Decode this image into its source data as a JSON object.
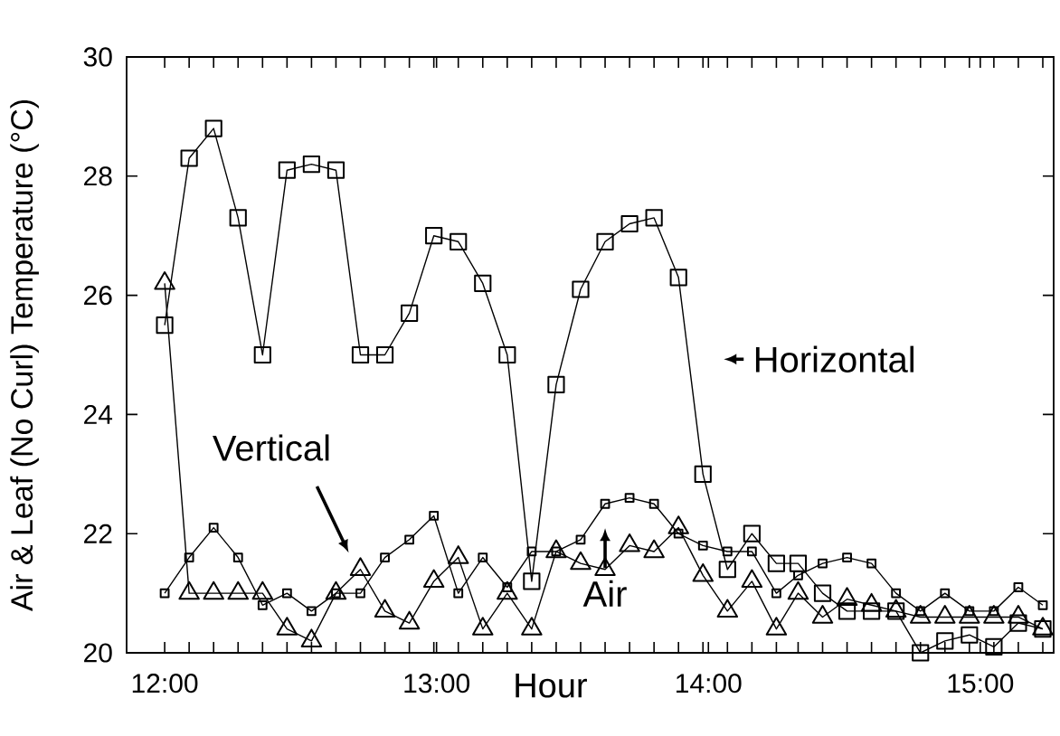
{
  "chart_data": {
    "type": "line",
    "xlabel": "Hour",
    "ylabel": "Air & Leaf (No Curl) Temperature (°C)",
    "x": [
      12.0,
      12.09,
      12.18,
      12.27,
      12.36,
      12.45,
      12.54,
      12.63,
      12.72,
      12.81,
      12.9,
      12.99,
      13.08,
      13.17,
      13.26,
      13.35,
      13.44,
      13.53,
      13.62,
      13.71,
      13.8,
      13.89,
      13.98,
      14.07,
      14.16,
      14.25,
      14.33,
      14.42,
      14.51,
      14.6,
      14.69,
      14.78,
      14.87,
      14.96,
      15.05,
      15.14,
      15.23
    ],
    "series": [
      {
        "color": "#000000",
        "marker": "square",
        "values": [
          25.5,
          28.3,
          28.8,
          27.3,
          25.0,
          28.1,
          28.2,
          28.1,
          25.0,
          25.0,
          25.7,
          27.0,
          26.9,
          26.2,
          25.0,
          21.2,
          24.5,
          26.1,
          26.9,
          27.2,
          27.3,
          26.3,
          23.0,
          21.4,
          22.0,
          21.5,
          21.5,
          21.0,
          20.7,
          20.7,
          20.7,
          20.0,
          20.2,
          20.3,
          20.1,
          20.5,
          20.4
        ]
      },
      {
        "color": "#000000",
        "marker": "triangle",
        "values": [
          26.2,
          21.0,
          21.0,
          21.0,
          21.0,
          20.4,
          20.2,
          21.0,
          21.4,
          20.7,
          20.5,
          21.2,
          21.6,
          20.4,
          21.0,
          20.4,
          21.7,
          21.5,
          21.4,
          21.8,
          21.7,
          22.1,
          21.3,
          20.7,
          21.2,
          20.4,
          21.0,
          20.6,
          20.9,
          20.8,
          20.7,
          20.6,
          20.6,
          20.6,
          20.6,
          20.6,
          20.4
        ]
      },
      {
        "color": "#000000",
        "marker": "square",
        "values": [
          21.0,
          21.6,
          22.1,
          21.6,
          20.8,
          21.0,
          20.7,
          21.0,
          21.0,
          21.6,
          21.9,
          22.3,
          21.0,
          21.6,
          21.1,
          21.7,
          21.7,
          21.9,
          22.5,
          22.6,
          22.5,
          22.0,
          21.8,
          21.7,
          21.7,
          21.0,
          21.3,
          21.5,
          21.6,
          21.5,
          21.0,
          20.7,
          21.0,
          20.7,
          20.7,
          21.1,
          20.8
        ]
      }
    ],
    "annotations": [
      "Horizontal",
      "Vertical",
      "Air"
    ],
    "xlim": [
      11.86,
      15.27
    ],
    "xticks": [
      {
        "value": 12,
        "label": "12:00"
      },
      {
        "value": 13,
        "label": "13:00"
      },
      {
        "value": 14,
        "label": "14:00"
      },
      {
        "value": 15,
        "label": "15:00"
      },
      {
        "value": 12.09,
        "label": null
      },
      {
        "value": 12.18,
        "label": null
      },
      {
        "value": 12.27,
        "label": null
      },
      {
        "value": 12.36,
        "label": null
      },
      {
        "value": 12.45,
        "label": null
      },
      {
        "value": 12.54,
        "label": null
      },
      {
        "value": 12.63,
        "label": null
      },
      {
        "value": 12.72,
        "label": null
      },
      {
        "value": 12.81,
        "label": null
      },
      {
        "value": 12.9,
        "label": null
      },
      {
        "value": 12.99,
        "label": null
      },
      {
        "value": 13.08,
        "label": null
      },
      {
        "value": 13.17,
        "label": null
      },
      {
        "value": 13.26,
        "label": null
      },
      {
        "value": 13.35,
        "label": null
      },
      {
        "value": 13.44,
        "label": null
      },
      {
        "value": 13.53,
        "label": null
      },
      {
        "value": 13.62,
        "label": null
      },
      {
        "value": 13.71,
        "label": null
      },
      {
        "value": 13.8,
        "label": null
      },
      {
        "value": 13.89,
        "label": null
      },
      {
        "value": 13.98,
        "label": null
      },
      {
        "value": 14.07,
        "label": null
      },
      {
        "value": 14.16,
        "label": null
      },
      {
        "value": 14.25,
        "label": null
      },
      {
        "value": 14.33,
        "label": null
      },
      {
        "value": 14.42,
        "label": null
      },
      {
        "value": 14.51,
        "label": null
      },
      {
        "value": 14.6,
        "label": null
      },
      {
        "value": 14.69,
        "label": null
      },
      {
        "value": 14.78,
        "label": null
      },
      {
        "value": 14.87,
        "label": null
      },
      {
        "value": 14.96,
        "label": null
      },
      {
        "value": 15.05,
        "label": null
      },
      {
        "value": 15.14,
        "label": null
      },
      {
        "value": 15.23,
        "label": null
      }
    ],
    "ylim": [
      20,
      30
    ],
    "yticks": [
      20,
      22,
      24,
      26,
      28,
      30
    ],
    "line_style": "solid"
  }
}
